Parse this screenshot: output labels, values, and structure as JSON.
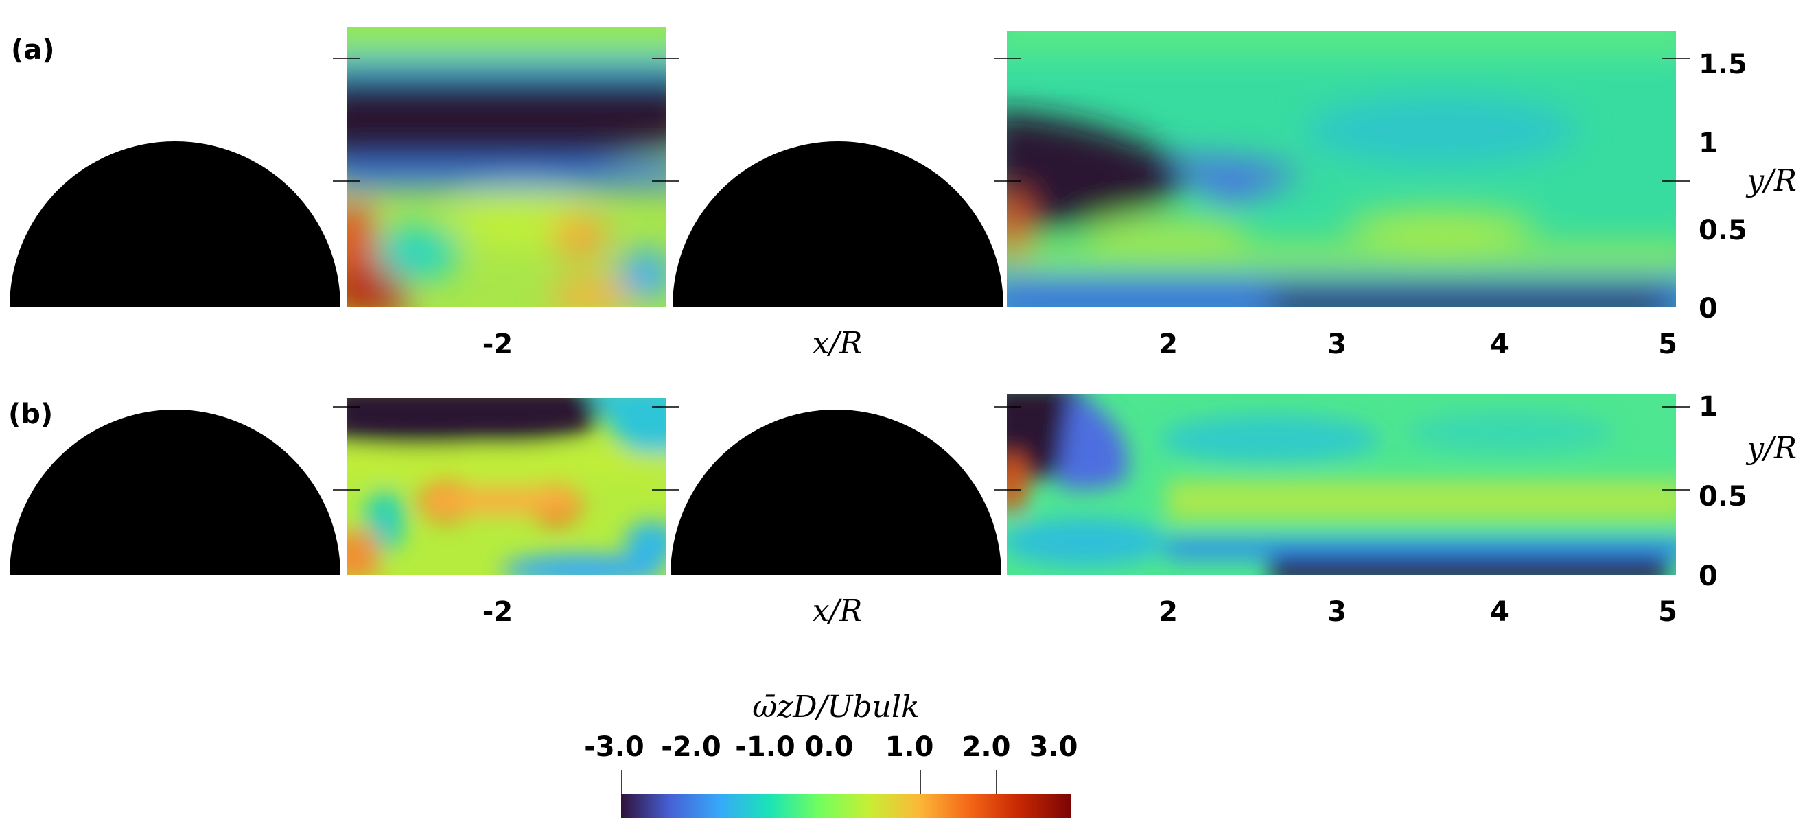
{
  "chart_data": [
    {
      "type": "heatmap",
      "panel_label": "(a)",
      "xlabel": "x/R",
      "ylabel": "y/R",
      "x_ticks": [
        "-2",
        "2",
        "3",
        "4",
        "5"
      ],
      "y_ticks": [
        "0",
        "0.5",
        "1",
        "1.5"
      ],
      "ylim": [
        0,
        1.7
      ]
    },
    {
      "type": "heatmap",
      "panel_label": "(b)",
      "xlabel": "x/R",
      "ylabel": "y/R",
      "x_ticks": [
        "-2",
        "2",
        "3",
        "4",
        "5"
      ],
      "y_ticks": [
        "0",
        "0.5",
        "1"
      ],
      "ylim": [
        0,
        1.05
      ]
    }
  ],
  "colorbar": {
    "title": "ω̄zD/Ubulk",
    "ticks": [
      "-3.0",
      "-2.0",
      "-1.0",
      "0.0",
      "1.0",
      "2.0",
      "3.0"
    ],
    "range": [
      -3.0,
      3.0
    ],
    "colormap": "turbo",
    "colors": [
      "#30123b",
      "#4662d7",
      "#36aaf9",
      "#1ae4b6",
      "#72fe5e",
      "#c7ef34",
      "#fbb938",
      "#f56918",
      "#c92903",
      "#7a0403"
    ]
  }
}
